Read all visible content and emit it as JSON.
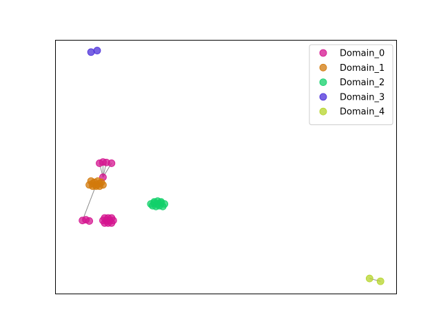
{
  "chart_data": {
    "type": "scatter",
    "title": "",
    "xlabel": "",
    "ylabel": "",
    "xlim": [
      0,
      100
    ],
    "ylim": [
      0,
      100
    ],
    "grid": false,
    "axis_ticks": false,
    "legend_position": "top-right",
    "edge_color": "#888888",
    "series": [
      {
        "name": "Domain_0",
        "color": "#d4148f",
        "points": [
          [
            14,
            29
          ],
          [
            15,
            29
          ],
          [
            16,
            29
          ],
          [
            17,
            29
          ],
          [
            14.5,
            30
          ],
          [
            15.5,
            30
          ],
          [
            16.5,
            30
          ],
          [
            14.5,
            28
          ],
          [
            15.5,
            28
          ],
          [
            16.5,
            28
          ],
          [
            8,
            29
          ],
          [
            9,
            29.3
          ],
          [
            10,
            28.8
          ],
          [
            13,
            51.5
          ],
          [
            14,
            52
          ],
          [
            15,
            51.8
          ],
          [
            16.5,
            51.5
          ],
          [
            14,
            46
          ]
        ]
      },
      {
        "name": "Domain_1",
        "color": "#d27a0c",
        "points": [
          [
            10,
            43
          ],
          [
            11,
            43.5
          ],
          [
            12,
            43
          ],
          [
            13,
            43.5
          ],
          [
            14,
            43
          ],
          [
            10.5,
            44.5
          ],
          [
            11.5,
            44
          ],
          [
            12.5,
            44.5
          ],
          [
            13.5,
            44
          ],
          [
            11,
            42.5
          ],
          [
            12,
            42.5
          ],
          [
            13,
            42.5
          ]
        ]
      },
      {
        "name": "Domain_2",
        "color": "#12d06a",
        "points": [
          [
            28,
            35.5
          ],
          [
            29,
            35.8
          ],
          [
            30,
            35.5
          ],
          [
            31,
            35.8
          ],
          [
            32,
            35.5
          ],
          [
            28.5,
            34.8
          ],
          [
            29.5,
            34.5
          ],
          [
            30.5,
            34.8
          ],
          [
            31.5,
            34.5
          ],
          [
            29,
            36.3
          ],
          [
            30,
            36.6
          ],
          [
            31,
            36.3
          ]
        ]
      },
      {
        "name": "Domain_3",
        "color": "#4b2fd9",
        "points": [
          [
            10.5,
            95.2
          ],
          [
            12.3,
            95.8
          ]
        ]
      },
      {
        "name": "Domain_4",
        "color": "#b5d42a",
        "points": [
          [
            92,
            6.2
          ],
          [
            95.2,
            5.1
          ]
        ]
      }
    ],
    "edges": [
      [
        [
          14,
          46
        ],
        [
          13,
          51.5
        ]
      ],
      [
        [
          14,
          46
        ],
        [
          14,
          52
        ]
      ],
      [
        [
          14,
          46
        ],
        [
          15,
          51.8
        ]
      ],
      [
        [
          14,
          46
        ],
        [
          16.5,
          51.5
        ]
      ],
      [
        [
          12,
          43
        ],
        [
          8,
          29
        ]
      ],
      [
        [
          92,
          6.2
        ],
        [
          95.2,
          5.1
        ]
      ]
    ]
  }
}
